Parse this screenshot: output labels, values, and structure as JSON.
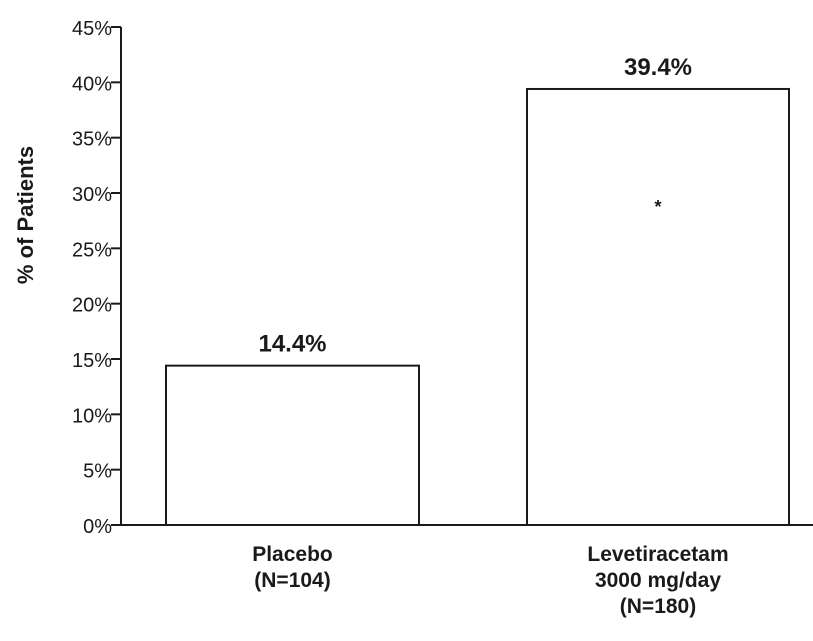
{
  "chart_data": {
    "type": "bar",
    "title": "",
    "xlabel": "",
    "ylabel": "% of Patients",
    "ylim": [
      0,
      45
    ],
    "grid": false,
    "y_ticks": [
      "0%",
      "5%",
      "10%",
      "15%",
      "20%",
      "25%",
      "30%",
      "35%",
      "40%",
      "45%"
    ],
    "y_tick_values": [
      0,
      5,
      10,
      15,
      20,
      25,
      30,
      35,
      40,
      45
    ],
    "categories": [
      [
        "Placebo",
        "(N=104)"
      ],
      [
        "Levetiracetam",
        "3000 mg/day",
        "(N=180)"
      ]
    ],
    "values": [
      14.4,
      39.4
    ],
    "data_labels": [
      "14.4%",
      "39.4%"
    ],
    "annotations": [
      {
        "category_index": 1,
        "text": "*"
      }
    ],
    "colors": {
      "bar_fill": "#ffffff",
      "bar_stroke": "#1a1a1a",
      "axis": "#1a1a1a"
    }
  }
}
